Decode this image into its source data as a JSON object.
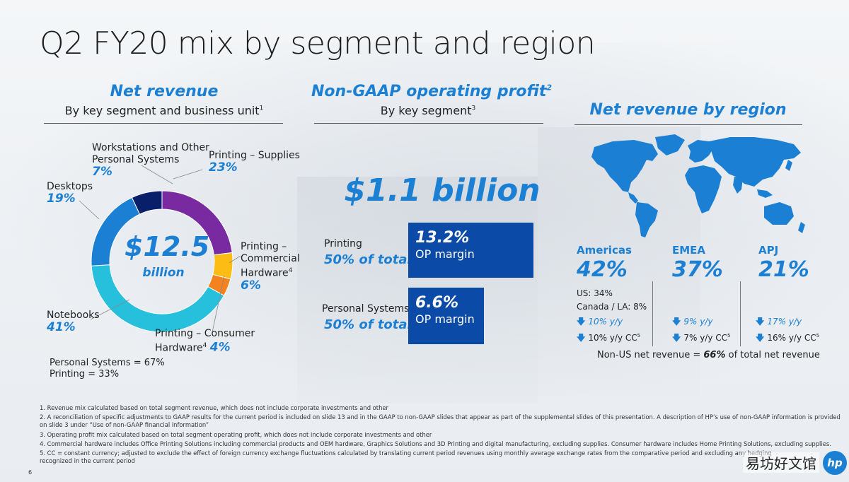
{
  "page": {
    "title": "Q2 FY20 mix by segment and region",
    "page_number": "6",
    "watermark": "易坊好文馆",
    "logo_text": "hp"
  },
  "net_revenue": {
    "heading": "Net revenue",
    "subheading": "By key segment and business unit",
    "subheading_note": "1",
    "center_value": "$12.5",
    "center_unit": "billion",
    "segments": [
      {
        "label_lines": [
          "Printing – Supplies"
        ],
        "note": "",
        "pct_text": "23%",
        "value": 23,
        "color": "#7a2aa0"
      },
      {
        "label_lines": [
          "Printing –",
          "Commercial",
          "Hardware"
        ],
        "note": "4",
        "pct_text": "6%",
        "value": 6,
        "color": "#fcbc14"
      },
      {
        "label_lines": [
          "Printing – Consumer",
          "Hardware"
        ],
        "note": "4",
        "pct_text": "4%",
        "value": 4,
        "color": "#f4821f"
      },
      {
        "label_lines": [
          "Notebooks"
        ],
        "note": "",
        "pct_text": "41%",
        "value": 41,
        "color": "#27c0dc"
      },
      {
        "label_lines": [
          "Desktops"
        ],
        "note": "",
        "pct_text": "19%",
        "value": 19,
        "color": "#1b7fd3"
      },
      {
        "label_lines": [
          "Workstations and Other",
          "Personal Systems"
        ],
        "note": "",
        "pct_text": "7%",
        "value": 7,
        "color": "#0a1f6a"
      }
    ],
    "summary": [
      "Personal Systems = 67%",
      "Printing = 33%"
    ]
  },
  "op_profit": {
    "heading": "Non-GAAP operating profit",
    "heading_note": "2",
    "subheading": "By key segment",
    "subheading_note": "3",
    "total": "$1.1 billion",
    "segments": [
      {
        "name": "Printing",
        "share": "50% of total",
        "margin": "13.2%",
        "margin_label": "OP margin"
      },
      {
        "name": "Personal Systems",
        "share": "50% of total",
        "margin": "6.6%",
        "margin_label": "OP margin"
      }
    ]
  },
  "by_region": {
    "heading": "Net revenue by region",
    "regions": [
      {
        "name": "Americas",
        "pct": "42%",
        "details": [
          "US: 34%",
          "Canada / LA: 8%"
        ],
        "yy": "10% y/y",
        "cc": "10% y/y CC",
        "cc_note": "5"
      },
      {
        "name": "EMEA",
        "pct": "37%",
        "details": [],
        "yy": "9% y/y",
        "cc": "7% y/y CC",
        "cc_note": "5"
      },
      {
        "name": "APJ",
        "pct": "21%",
        "details": [],
        "yy": "17% y/y",
        "cc": "16% y/y CC",
        "cc_note": "5"
      }
    ],
    "non_us_prefix": "Non-US net revenue = ",
    "non_us_pct": "66%",
    "non_us_suffix": " of total net revenue",
    "map_color": "#1b7fd3",
    "arrow_icon": "arrow-down-icon"
  },
  "footnotes": [
    "1.  Revenue mix calculated based on total segment revenue, which does not include corporate investments and other",
    "2.  A reconciliation of specific adjustments to GAAP results for the current period is included on slide 13 and in the GAAP to non-GAAP slides that appear as part of the supplemental slides of this presentation. A description of HP’s use of non-GAAP information is provided",
    "     on slide 3 under “Use of non-GAAP financial information”",
    "3.  Operating profit mix calculated based on total segment operating profit, which does not include corporate investments and other",
    "4.  Commercial hardware includes Office Printing Solutions including commercial products and OEM hardware, Graphics Solutions and 3D Printing and digital manufacturing, excluding supplies. Consumer hardware includes Home Printing Solutions, excluding supplies.",
    "5.  CC = constant currency; adjusted to exclude the effect of foreign currency exchange fluctuations calculated by translating current period revenues using monthly average exchange rates from the comparative period and excluding any hedging",
    "     recognized in the current period"
  ]
}
